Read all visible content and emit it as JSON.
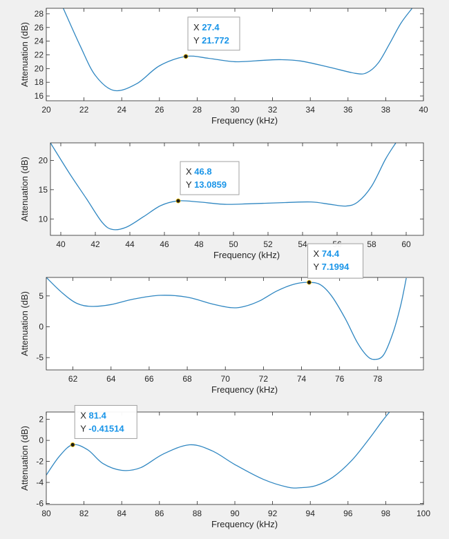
{
  "colors": {
    "line": "#2e86c1",
    "figure_bg": "#f0f0f0",
    "axes_bg": "#ffffff",
    "tip_value": "#1a95e8"
  },
  "chart_data": [
    {
      "type": "line",
      "xlabel": "Frequency (kHz)",
      "ylabel": "Attenuation (dB)",
      "xlim": [
        20,
        40
      ],
      "ylim": [
        15.3,
        28.8
      ],
      "xticks": [
        20,
        22,
        24,
        26,
        28,
        30,
        32,
        34,
        36,
        38,
        40
      ],
      "yticks": [
        16,
        18,
        20,
        22,
        24,
        26,
        28
      ],
      "grid": false,
      "series": [
        {
          "x": [
            20.9,
            21.8,
            22.6,
            23.6,
            24.8,
            26,
            27.4,
            28.6,
            30,
            31.5,
            32.4,
            33.5,
            35,
            36.4,
            37,
            37.6,
            38.2,
            38.8,
            39.4
          ],
          "y": [
            28.8,
            23.3,
            19,
            16.8,
            17.8,
            20.4,
            21.772,
            21.5,
            21.0,
            21.2,
            21.3,
            21.1,
            20.2,
            19.3,
            19.4,
            20.8,
            23.6,
            26.6,
            28.8
          ]
        }
      ],
      "datatip": {
        "x_label": "X",
        "y_label": "Y",
        "x_text": "27.4",
        "y_text": "21.772",
        "x": 27.4,
        "y": 21.772
      }
    },
    {
      "type": "line",
      "xlabel": "Frequency (kHz)",
      "ylabel": "Attenuation (dB)",
      "xlim": [
        39.4,
        61
      ],
      "ylim": [
        7.2,
        23
      ],
      "xticks": [
        40,
        42,
        44,
        46,
        48,
        50,
        52,
        54,
        56,
        58,
        60
      ],
      "yticks": [
        10,
        15,
        20
      ],
      "grid": false,
      "series": [
        {
          "x": [
            39.4,
            40.5,
            41.5,
            42.4,
            43,
            43.8,
            44.8,
            45.8,
            46.8,
            48,
            49.5,
            51,
            53,
            54.5,
            55.6,
            56.5,
            57.2,
            58,
            58.8,
            59.4
          ],
          "y": [
            23,
            17.8,
            13.4,
            9.4,
            8.2,
            8.6,
            10.4,
            12.3,
            13.0859,
            12.9,
            12.5,
            12.6,
            12.8,
            12.9,
            12.5,
            12.2,
            12.9,
            15.6,
            20.2,
            23
          ]
        }
      ],
      "datatip": {
        "x_label": "X",
        "y_label": "Y",
        "x_text": "46.8",
        "y_text": "13.0859",
        "x": 46.8,
        "y": 13.0859
      }
    },
    {
      "type": "line",
      "xlabel": "Frequency (kHz)",
      "ylabel": "Attenuation (dB)",
      "xlim": [
        60.6,
        80.4
      ],
      "ylim": [
        -7,
        8
      ],
      "xticks": [
        62,
        64,
        66,
        68,
        70,
        72,
        74,
        76,
        78
      ],
      "yticks": [
        -5,
        0,
        5
      ],
      "grid": false,
      "series": [
        {
          "x": [
            60.6,
            61.4,
            62.2,
            63,
            64,
            65.2,
            66.6,
            68,
            69.3,
            70.3,
            71,
            71.8,
            72.7,
            73.6,
            74.4,
            75,
            75.6,
            76.3,
            76.9,
            77.4,
            77.8,
            78.3,
            78.8,
            79.2,
            79.5
          ],
          "y": [
            8,
            5.6,
            3.8,
            3.3,
            3.6,
            4.5,
            5.1,
            4.8,
            3.7,
            3.1,
            3.3,
            4.2,
            5.8,
            6.9,
            7.1994,
            6.8,
            4.9,
            1.3,
            -2.4,
            -4.6,
            -5.3,
            -4.6,
            -1,
            3.4,
            7.9
          ]
        }
      ],
      "datatip": {
        "x_label": "X",
        "y_label": "Y",
        "x_text": "74.4",
        "y_text": "7.1994",
        "x": 74.4,
        "y": 7.1994
      }
    },
    {
      "type": "line",
      "xlabel": "Frequency (kHz)",
      "ylabel": "Attenuation (dB)",
      "xlim": [
        80,
        100
      ],
      "ylim": [
        -6.1,
        2.7
      ],
      "xticks": [
        80,
        82,
        84,
        86,
        88,
        90,
        92,
        94,
        96,
        98,
        100
      ],
      "yticks": [
        -6,
        -4,
        -2,
        0,
        2
      ],
      "grid": false,
      "series": [
        {
          "x": [
            80,
            80.7,
            81.4,
            82.2,
            83,
            84,
            85,
            86.2,
            87.6,
            88.8,
            90,
            91.5,
            92.8,
            93.5,
            94.3,
            95.2,
            96.2,
            97.1,
            97.8,
            98.2
          ],
          "y": [
            -3.3,
            -1.5,
            -0.41514,
            -0.9,
            -2.2,
            -2.85,
            -2.6,
            -1.3,
            -0.42,
            -1,
            -2.3,
            -3.7,
            -4.45,
            -4.5,
            -4.3,
            -3.5,
            -1.9,
            0.1,
            1.8,
            2.7
          ]
        }
      ],
      "datatip": {
        "x_label": "X",
        "y_label": "Y",
        "x_text": "81.4",
        "y_text": "-0.41514",
        "x": 81.4,
        "y": -0.41514
      }
    }
  ]
}
